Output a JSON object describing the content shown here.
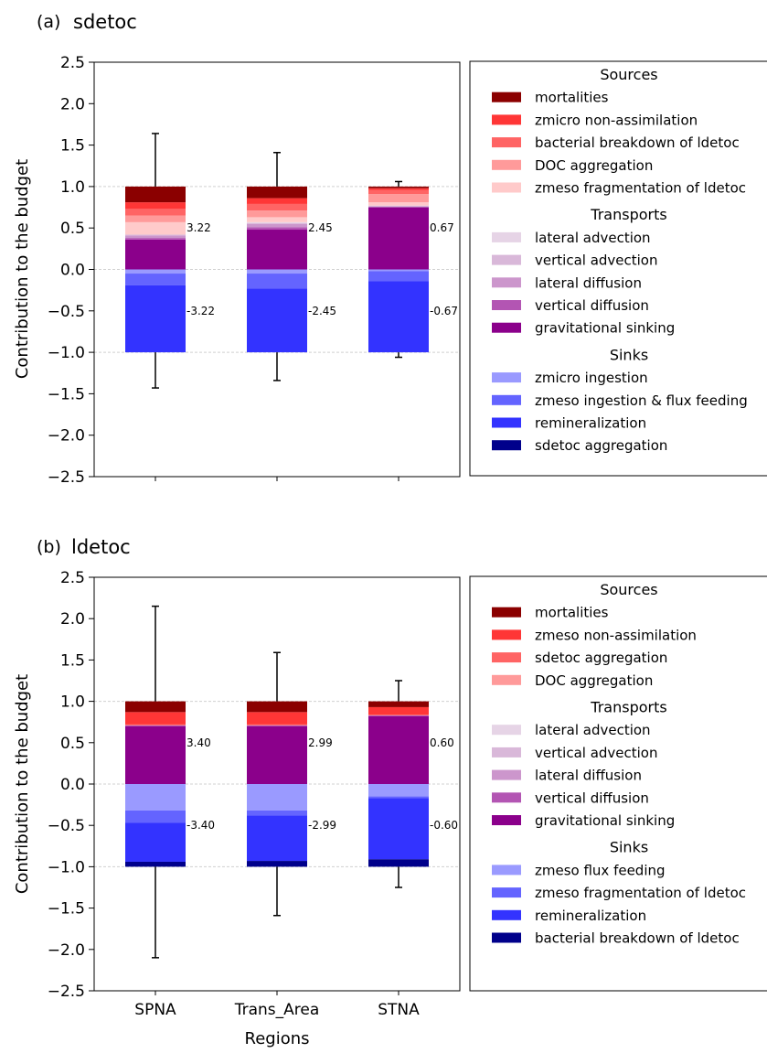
{
  "chart_data": [
    {
      "type": "bar",
      "subtype": "stacked",
      "panel_label": "(a)",
      "title": "sdetoc",
      "ylabel": "Contribution to the budget",
      "xlabel": "",
      "ylim": [
        -2.5,
        2.5
      ],
      "yticks": [
        "2.5",
        "2.0",
        "1.5",
        "1.0",
        "0.5",
        "0.0",
        "−0.5",
        "−1.0",
        "−1.5",
        "−2.0",
        "−2.5"
      ],
      "categories": [
        "SPNA",
        "Trans_Area",
        "STNA"
      ],
      "show_category_labels": false,
      "grid_y_values": [
        1,
        0,
        -1
      ],
      "legend_position": "right",
      "groups": [
        {
          "name": "Sources",
          "items": [
            {
              "name": "mortalities",
              "color": "#8b0000",
              "values": [
                0.19,
                0.14,
                0.02
              ]
            },
            {
              "name": "zmicro non-assimilation",
              "color": "#ff3636",
              "values": [
                0.08,
                0.07,
                0.02
              ]
            },
            {
              "name": "bacterial breakdown of ldetoc",
              "color": "#ff6464",
              "values": [
                0.08,
                0.08,
                0.05
              ]
            },
            {
              "name": "DOC aggregation",
              "color": "#ff9a9a",
              "values": [
                0.08,
                0.08,
                0.1
              ]
            },
            {
              "name": "zmeso fragmentation of ldetoc",
              "color": "#ffcaca",
              "values": [
                0.15,
                0.06,
                0.04
              ]
            }
          ]
        },
        {
          "name": "Transports",
          "items": [
            {
              "name": "lateral advection",
              "color": "#e6d4e6",
              "values": [
                0.0,
                0.01,
                0.0
              ]
            },
            {
              "name": "vertical advection",
              "color": "#d9b8d9",
              "values": [
                0.01,
                0.01,
                0.01
              ]
            },
            {
              "name": "lateral diffusion",
              "color": "#cc96cc",
              "values": [
                0.03,
                0.04,
                0.01
              ]
            },
            {
              "name": "vertical diffusion",
              "color": "#b355b3",
              "values": [
                0.02,
                0.03,
                0.0
              ]
            },
            {
              "name": "gravitational sinking",
              "color": "#8b008b",
              "values": [
                0.36,
                0.48,
                0.75
              ]
            }
          ]
        },
        {
          "name": "Sinks",
          "items": [
            {
              "name": "zmicro ingestion",
              "color": "#9a9aff",
              "values": [
                -0.05,
                -0.05,
                -0.02
              ]
            },
            {
              "name": "zmeso ingestion & flux feeding",
              "color": "#6464ff",
              "values": [
                -0.14,
                -0.18,
                -0.12
              ]
            },
            {
              "name": "remineralization",
              "color": "#3333ff",
              "values": [
                -0.81,
                -0.77,
                -0.86
              ]
            },
            {
              "name": "sdetoc aggregation",
              "color": "#00008b",
              "values": [
                0.0,
                0.0,
                0.0
              ]
            }
          ]
        }
      ],
      "error_bars": {
        "upper": [
          1.64,
          1.41,
          1.06
        ],
        "lower": [
          -1.43,
          -1.34,
          -1.06
        ]
      },
      "annotations": {
        "positive": [
          "3.22",
          "2.45",
          "0.67"
        ],
        "negative": [
          "-3.22",
          "-2.45",
          "-0.67"
        ]
      }
    },
    {
      "type": "bar",
      "subtype": "stacked",
      "panel_label": "(b)",
      "title": "ldetoc",
      "ylabel": "Contribution to the budget",
      "xlabel": "Regions",
      "ylim": [
        -2.5,
        2.5
      ],
      "yticks": [
        "2.5",
        "2.0",
        "1.5",
        "1.0",
        "0.5",
        "0.0",
        "−0.5",
        "−1.0",
        "−1.5",
        "−2.0",
        "−2.5"
      ],
      "categories": [
        "SPNA",
        "Trans_Area",
        "STNA"
      ],
      "show_category_labels": true,
      "grid_y_values": [
        1,
        0,
        -1
      ],
      "legend_position": "right",
      "groups": [
        {
          "name": "Sources",
          "items": [
            {
              "name": "mortalities",
              "color": "#8b0000",
              "values": [
                0.13,
                0.13,
                0.07
              ]
            },
            {
              "name": "zmeso non-assimilation",
              "color": "#ff3636",
              "values": [
                0.15,
                0.15,
                0.09
              ]
            },
            {
              "name": "sdetoc aggregation",
              "color": "#ff6464",
              "values": [
                0.01,
                0.01,
                0.01
              ]
            },
            {
              "name": "DOC aggregation",
              "color": "#ff9a9a",
              "values": [
                0.0,
                0.0,
                0.0
              ]
            }
          ]
        },
        {
          "name": "Transports",
          "items": [
            {
              "name": "lateral advection",
              "color": "#e6d4e6",
              "values": [
                0.0,
                0.0,
                0.0
              ]
            },
            {
              "name": "vertical advection",
              "color": "#d9b8d9",
              "values": [
                0.0,
                0.0,
                0.0
              ]
            },
            {
              "name": "lateral diffusion",
              "color": "#cc96cc",
              "values": [
                0.0,
                0.0,
                0.0
              ]
            },
            {
              "name": "vertical diffusion",
              "color": "#b355b3",
              "values": [
                0.01,
                0.01,
                0.01
              ]
            },
            {
              "name": "gravitational sinking",
              "color": "#8b008b",
              "values": [
                0.7,
                0.7,
                0.82
              ]
            }
          ]
        },
        {
          "name": "Sinks",
          "items": [
            {
              "name": "zmeso flux feeding",
              "color": "#9a9aff",
              "values": [
                -0.32,
                -0.32,
                -0.15
              ]
            },
            {
              "name": "zmeso fragmentation of ldetoc",
              "color": "#6464ff",
              "values": [
                -0.15,
                -0.06,
                -0.02
              ]
            },
            {
              "name": "remineralization",
              "color": "#3333ff",
              "values": [
                -0.47,
                -0.55,
                -0.74
              ]
            },
            {
              "name": "bacterial breakdown of ldetoc",
              "color": "#00008b",
              "values": [
                -0.06,
                -0.07,
                -0.09
              ]
            }
          ]
        }
      ],
      "error_bars": {
        "upper": [
          2.15,
          1.59,
          1.25
        ],
        "lower": [
          -2.1,
          -1.59,
          -1.25
        ]
      },
      "annotations": {
        "positive": [
          "3.40",
          "2.99",
          "0.60"
        ],
        "negative": [
          "-3.40",
          "-2.99",
          "-0.60"
        ]
      }
    }
  ]
}
